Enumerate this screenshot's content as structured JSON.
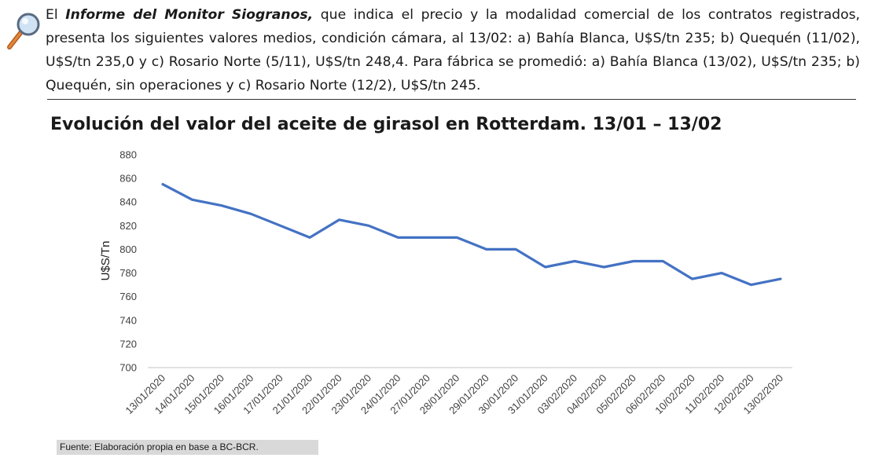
{
  "paragraph": {
    "prefix": "El ",
    "emphasis": "Informe del Monitor Siogranos,",
    "body": " que indica el precio y la modalidad comercial de los contratos registrados, presenta los siguientes valores medios, condición cámara, al 13/02: a) Bahía Blanca, U$S/tn 235; b) Quequén (11/02), U$S/tn 235,0 y c) Rosario Norte (5/11), U$S/tn 248,4. Para fábrica se promedió: a) Bahía Blanca (13/02), U$S/tn 235; b) Quequén, sin operaciones y c) Rosario Norte (12/2), U$S/tn 245."
  },
  "icon": "magnifying-glass-icon",
  "colors": {
    "line": "#4472c4",
    "rule": "#333333",
    "source_bg": "#d9d9d9"
  },
  "chart_data": {
    "type": "line",
    "title": "Evolución del valor del aceite de girasol en Rotterdam. 13/01 – 13/02",
    "xlabel": "",
    "ylabel": "U$S/Tn",
    "ylim": [
      700,
      880
    ],
    "yticks": [
      700,
      720,
      740,
      760,
      780,
      800,
      820,
      840,
      860,
      880
    ],
    "grid": false,
    "categories": [
      "13/01/2020",
      "14/01/2020",
      "15/01/2020",
      "16/01/2020",
      "17/01/2020",
      "21/01/2020",
      "22/01/2020",
      "23/01/2020",
      "24/01/2020",
      "27/01/2020",
      "28/01/2020",
      "29/01/2020",
      "30/01/2020",
      "31/01/2020",
      "03/02/2020",
      "04/02/2020",
      "05/02/2020",
      "06/02/2020",
      "10/02/2020",
      "11/02/2020",
      "12/02/2020",
      "13/02/2020"
    ],
    "series": [
      {
        "values": [
          855,
          842,
          837,
          830,
          820,
          810,
          825,
          820,
          810,
          810,
          810,
          800,
          800,
          785,
          790,
          785,
          790,
          790,
          775,
          780,
          770,
          775
        ]
      }
    ]
  },
  "source": "Fuente: Elaboración propia en base a BC-BCR."
}
